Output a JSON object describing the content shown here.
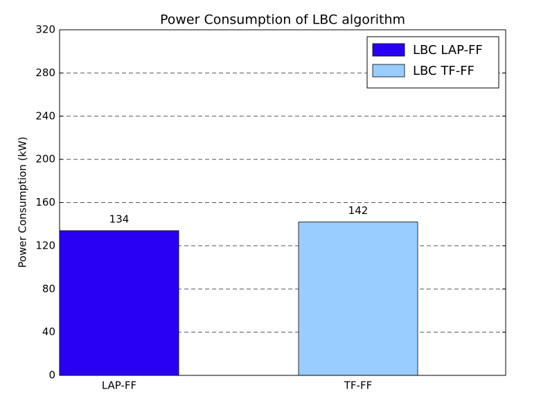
{
  "chart_data": {
    "type": "bar",
    "title": "Power Consumption of LBC algorithm",
    "y_label": "Power Consumption (kW)",
    "categories": [
      "LAP-FF",
      "TF-FF"
    ],
    "series": [
      {
        "name": "LBC LAP-FF",
        "color": "#2a00f5",
        "values": [
          134,
          null
        ]
      },
      {
        "name": "LBC TF-FF",
        "color": "#99ccff",
        "values": [
          null,
          142
        ]
      }
    ],
    "ylim": [
      0,
      320
    ],
    "yticks": [
      0,
      40,
      80,
      120,
      160,
      200,
      240,
      280,
      320
    ],
    "grid": true,
    "legend": "upper right"
  }
}
